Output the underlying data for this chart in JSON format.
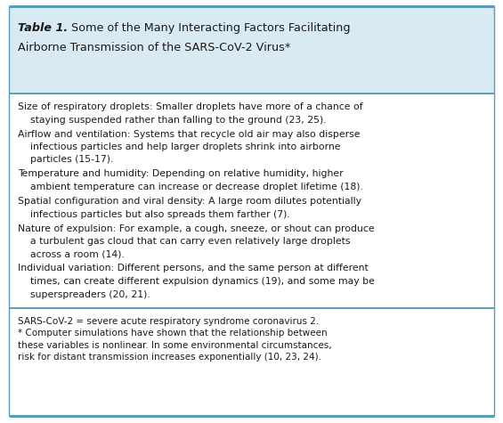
{
  "title_bold": "Table 1.",
  "title_line1_rest": "  Some of the Many Interacting Factors Facilitating",
  "title_line2": "Airborne Transmission of the SARS-CoV-2 Virus*",
  "header_bg": "#daeaf2",
  "border_color": "#5a9db8",
  "body_bg": "#ffffff",
  "text_color": "#1a1a1a",
  "footer_text_color": "#1a1a1a",
  "body_items": [
    {
      "first_line": "Size of respiratory droplets: Smaller droplets have more of a chance of",
      "cont_lines": [
        "    staying suspended rather than falling to the ground (23, 25)."
      ]
    },
    {
      "first_line": "Airflow and ventilation: Systems that recycle old air may also disperse",
      "cont_lines": [
        "    infectious particles and help larger droplets shrink into airborne",
        "    particles (15-17)."
      ]
    },
    {
      "first_line": "Temperature and humidity: Depending on relative humidity, higher",
      "cont_lines": [
        "    ambient temperature can increase or decrease droplet lifetime (18)."
      ]
    },
    {
      "first_line": "Spatial configuration and viral density: A large room dilutes potentially",
      "cont_lines": [
        "    infectious particles but also spreads them farther (7)."
      ]
    },
    {
      "first_line": "Nature of expulsion: For example, a cough, sneeze, or shout can produce",
      "cont_lines": [
        "    a turbulent gas cloud that can carry even relatively large droplets",
        "    across a room (14)."
      ]
    },
    {
      "first_line": "Individual variation: Different persons, and the same person at different",
      "cont_lines": [
        "    times, can create different expulsion dynamics (19), and some may be",
        "    superspreaders (20, 21)."
      ]
    }
  ],
  "footer_lines": [
    "SARS-CoV-2 = severe acute respiratory syndrome coronavirus 2.",
    "* Computer simulations have shown that the relationship between",
    "these variables is nonlinear. In some environmental circumstances,",
    "risk for distant transmission increases exponentially (10, 23, 24)."
  ],
  "fig_bg": "#ffffff",
  "font_size_body": 7.8,
  "font_size_title": 9.2,
  "font_size_footer": 7.5
}
